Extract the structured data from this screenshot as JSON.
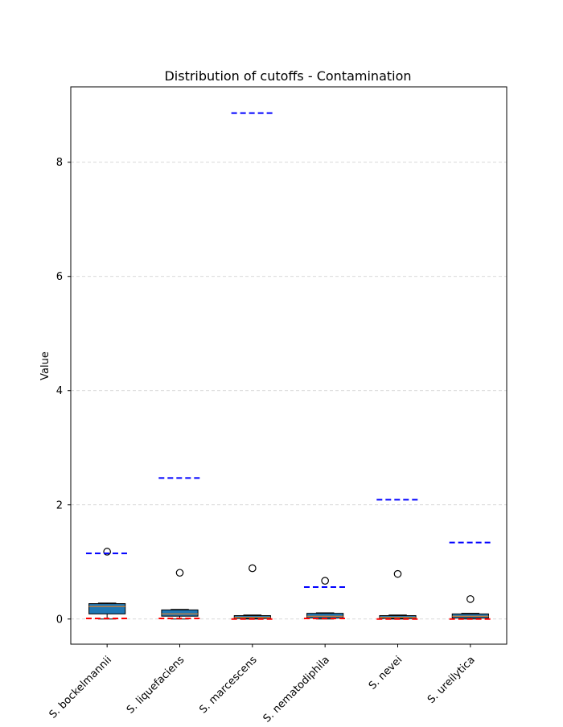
{
  "chart_data": {
    "type": "box",
    "title": "Distribution of cutoffs - Contamination",
    "xlabel": "",
    "ylabel": "Value",
    "ylim": [
      -0.44,
      9.32
    ],
    "yticks": [
      0,
      2,
      4,
      6,
      8
    ],
    "grid": "y-dashed",
    "categories": [
      "S. bockelmannii",
      "S. liquefaciens",
      "S. marcescens",
      "S. nematodiphila",
      "S. nevei",
      "S. ureilytica"
    ],
    "boxes": [
      {
        "q1": 0.09,
        "median": 0.22,
        "q3": 0.27,
        "whisker_low": 0.0,
        "whisker_high": 0.28,
        "outliers": [
          1.18
        ],
        "upper_cutoff": 1.15,
        "lower_cutoff": 0.01
      },
      {
        "q1": 0.05,
        "median": 0.09,
        "q3": 0.16,
        "whisker_low": 0.0,
        "whisker_high": 0.17,
        "outliers": [
          0.81
        ],
        "upper_cutoff": 2.47,
        "lower_cutoff": 0.01
      },
      {
        "q1": 0.01,
        "median": 0.03,
        "q3": 0.06,
        "whisker_low": 0.0,
        "whisker_high": 0.07,
        "outliers": [
          0.89
        ],
        "upper_cutoff": 8.86,
        "lower_cutoff": 0.0
      },
      {
        "q1": 0.02,
        "median": 0.05,
        "q3": 0.1,
        "whisker_low": 0.0,
        "whisker_high": 0.11,
        "outliers": [
          0.67
        ],
        "upper_cutoff": 0.56,
        "lower_cutoff": 0.01
      },
      {
        "q1": 0.01,
        "median": 0.03,
        "q3": 0.06,
        "whisker_low": 0.0,
        "whisker_high": 0.07,
        "outliers": [
          0.79
        ],
        "upper_cutoff": 2.09,
        "lower_cutoff": 0.0
      },
      {
        "q1": 0.02,
        "median": 0.05,
        "q3": 0.09,
        "whisker_low": 0.0,
        "whisker_high": 0.1,
        "outliers": [
          0.35
        ],
        "upper_cutoff": 1.34,
        "lower_cutoff": 0.0
      }
    ],
    "colors": {
      "box_fill": "#1f77b4",
      "box_edge": "#000000",
      "median": "#ff7f0e",
      "upper_cutoff_line": "#0000ff",
      "lower_cutoff_line": "#ff0000",
      "grid": "#cccccc"
    }
  }
}
